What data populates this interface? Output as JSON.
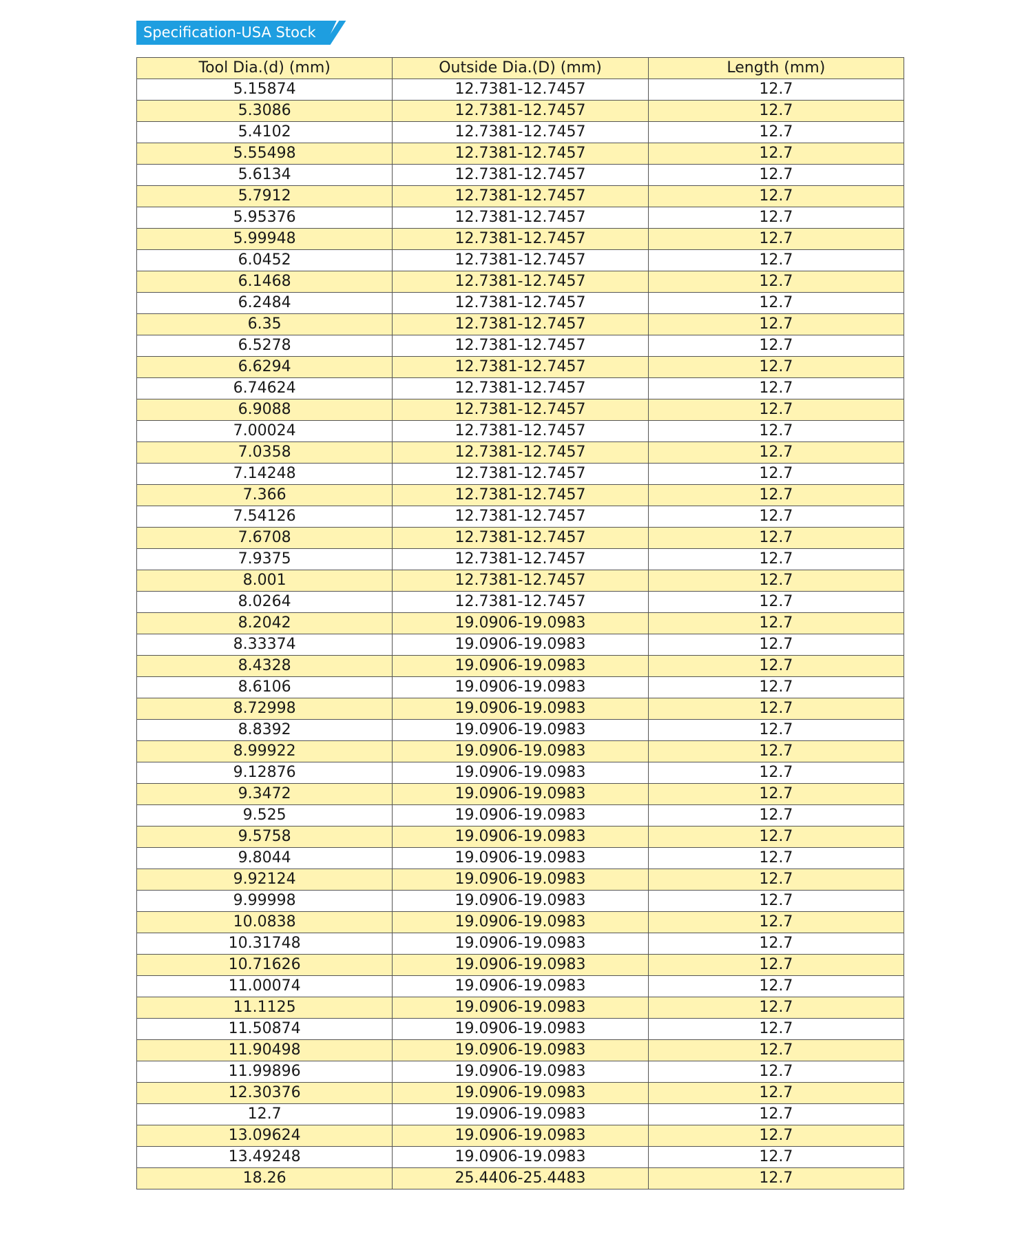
{
  "title": "Specification-USA Stock",
  "colors": {
    "accent": "#1e9ee0",
    "row_highlight": "#fff4b3"
  },
  "table": {
    "headers": [
      "Tool Dia.(d) (mm)",
      "Outside Dia.(D) (mm)",
      "Length (mm)"
    ],
    "rows": [
      [
        "5.15874",
        "12.7381-12.7457",
        "12.7"
      ],
      [
        "5.3086",
        "12.7381-12.7457",
        "12.7"
      ],
      [
        "5.4102",
        "12.7381-12.7457",
        "12.7"
      ],
      [
        "5.55498",
        "12.7381-12.7457",
        "12.7"
      ],
      [
        "5.6134",
        "12.7381-12.7457",
        "12.7"
      ],
      [
        "5.7912",
        "12.7381-12.7457",
        "12.7"
      ],
      [
        "5.95376",
        "12.7381-12.7457",
        "12.7"
      ],
      [
        "5.99948",
        "12.7381-12.7457",
        "12.7"
      ],
      [
        "6.0452",
        "12.7381-12.7457",
        "12.7"
      ],
      [
        "6.1468",
        "12.7381-12.7457",
        "12.7"
      ],
      [
        "6.2484",
        "12.7381-12.7457",
        "12.7"
      ],
      [
        "6.35",
        "12.7381-12.7457",
        "12.7"
      ],
      [
        "6.5278",
        "12.7381-12.7457",
        "12.7"
      ],
      [
        "6.6294",
        "12.7381-12.7457",
        "12.7"
      ],
      [
        "6.74624",
        "12.7381-12.7457",
        "12.7"
      ],
      [
        "6.9088",
        "12.7381-12.7457",
        "12.7"
      ],
      [
        "7.00024",
        "12.7381-12.7457",
        "12.7"
      ],
      [
        "7.0358",
        "12.7381-12.7457",
        "12.7"
      ],
      [
        "7.14248",
        "12.7381-12.7457",
        "12.7"
      ],
      [
        "7.366",
        "12.7381-12.7457",
        "12.7"
      ],
      [
        "7.54126",
        "12.7381-12.7457",
        "12.7"
      ],
      [
        "7.6708",
        "12.7381-12.7457",
        "12.7"
      ],
      [
        "7.9375",
        "12.7381-12.7457",
        "12.7"
      ],
      [
        "8.001",
        "12.7381-12.7457",
        "12.7"
      ],
      [
        "8.0264",
        "12.7381-12.7457",
        "12.7"
      ],
      [
        "8.2042",
        "19.0906-19.0983",
        "12.7"
      ],
      [
        "8.33374",
        "19.0906-19.0983",
        "12.7"
      ],
      [
        "8.4328",
        "19.0906-19.0983",
        "12.7"
      ],
      [
        "8.6106",
        "19.0906-19.0983",
        "12.7"
      ],
      [
        "8.72998",
        "19.0906-19.0983",
        "12.7"
      ],
      [
        "8.8392",
        "19.0906-19.0983",
        "12.7"
      ],
      [
        "8.99922",
        "19.0906-19.0983",
        "12.7"
      ],
      [
        "9.12876",
        "19.0906-19.0983",
        "12.7"
      ],
      [
        "9.3472",
        "19.0906-19.0983",
        "12.7"
      ],
      [
        "9.525",
        "19.0906-19.0983",
        "12.7"
      ],
      [
        "9.5758",
        "19.0906-19.0983",
        "12.7"
      ],
      [
        "9.8044",
        "19.0906-19.0983",
        "12.7"
      ],
      [
        "9.92124",
        "19.0906-19.0983",
        "12.7"
      ],
      [
        "9.99998",
        "19.0906-19.0983",
        "12.7"
      ],
      [
        "10.0838",
        "19.0906-19.0983",
        "12.7"
      ],
      [
        "10.31748",
        "19.0906-19.0983",
        "12.7"
      ],
      [
        "10.71626",
        "19.0906-19.0983",
        "12.7"
      ],
      [
        "11.00074",
        "19.0906-19.0983",
        "12.7"
      ],
      [
        "11.1125",
        "19.0906-19.0983",
        "12.7"
      ],
      [
        "11.50874",
        "19.0906-19.0983",
        "12.7"
      ],
      [
        "11.90498",
        "19.0906-19.0983",
        "12.7"
      ],
      [
        "11.99896",
        "19.0906-19.0983",
        "12.7"
      ],
      [
        "12.30376",
        "19.0906-19.0983",
        "12.7"
      ],
      [
        "12.7",
        "19.0906-19.0983",
        "12.7"
      ],
      [
        "13.09624",
        "19.0906-19.0983",
        "12.7"
      ],
      [
        "13.49248",
        "19.0906-19.0983",
        "12.7"
      ],
      [
        "18.26",
        "25.4406-25.4483",
        "12.7"
      ]
    ]
  }
}
